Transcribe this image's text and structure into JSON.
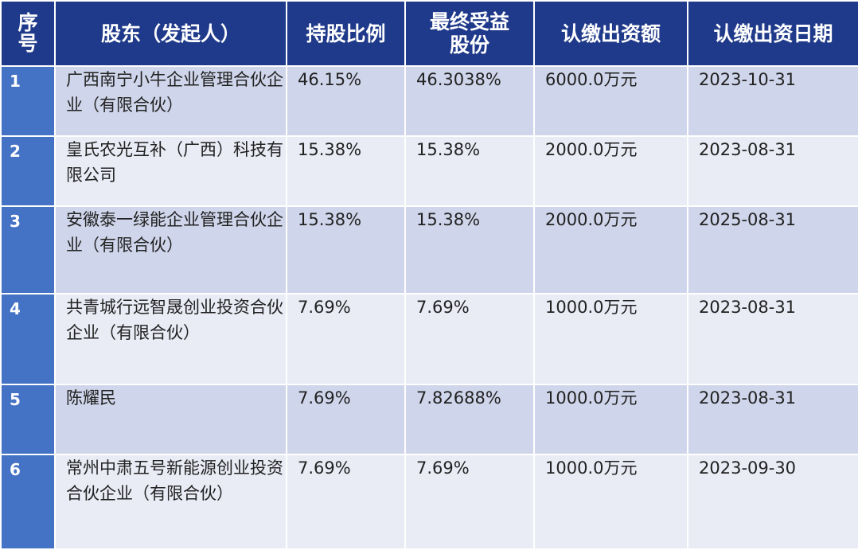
{
  "header": {
    "index_line1": "序",
    "index_line2": "号",
    "shareholder": "股东（发起人）",
    "ratio": "持股比例",
    "final_line1": "最终受益",
    "final_line2": "股份",
    "amount": "认缴出资额",
    "date": "认缴出资日期"
  },
  "rows": [
    {
      "idx": "1",
      "name": "广西南宁小牛企业管理合伙企业（有限合伙）",
      "ratio": "46.15%",
      "final": "46.3038%",
      "amount": "6000.0万元",
      "date": "2023-10-31"
    },
    {
      "idx": "2",
      "name": "皇氏农光互补（广西）科技有限公司",
      "ratio": "15.38%",
      "final": "15.38%",
      "amount": "2000.0万元",
      "date": "2023-08-31"
    },
    {
      "idx": "3",
      "name": "安徽泰一绿能企业管理合伙企业（有限合伙）",
      "ratio": "15.38%",
      "final": "15.38%",
      "amount": "2000.0万元",
      "date": "2025-08-31"
    },
    {
      "idx": "4",
      "name": "共青城行远智晟创业投资合伙企业（有限合伙）",
      "ratio": "7.69%",
      "final": "7.69%",
      "amount": "1000.0万元",
      "date": "2023-08-31"
    },
    {
      "idx": "5",
      "name": "陈耀民",
      "ratio": "7.69%",
      "final": "7.82688%",
      "amount": "1000.0万元",
      "date": "2023-08-31"
    },
    {
      "idx": "6",
      "name": "常州中肃五号新能源创业投资合伙企业（有限合伙）",
      "ratio": "7.69%",
      "final": "7.69%",
      "amount": "1000.0万元",
      "date": "2023-09-30"
    }
  ]
}
